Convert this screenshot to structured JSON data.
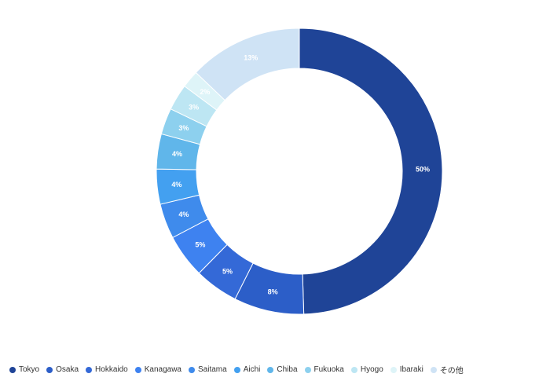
{
  "chart_data": {
    "type": "pie",
    "donut": true,
    "title": "",
    "legend_position": "bottom-left",
    "categories": [
      "Tokyo",
      "Osaka",
      "Hokkaido",
      "Kanagawa",
      "Saitama",
      "Aichi",
      "Chiba",
      "Fukuoka",
      "Hyogo",
      "Ibaraki",
      "その他"
    ],
    "values": [
      50,
      8,
      5,
      5,
      4,
      4,
      4,
      3,
      3,
      2,
      13
    ],
    "value_labels": [
      "50%",
      "8%",
      "5%",
      "5%",
      "4%",
      "4%",
      "4%",
      "3%",
      "3%",
      "2%",
      "13%"
    ],
    "colors": [
      "#1f4497",
      "#2c5ec8",
      "#3469d7",
      "#3e82f0",
      "#3f8bec",
      "#43a0f0",
      "#60b6ea",
      "#8dd0ee",
      "#bde6f3",
      "#def4f8",
      "#cfe3f5"
    ]
  }
}
